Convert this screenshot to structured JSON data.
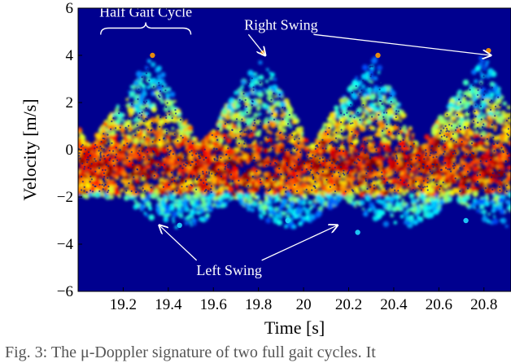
{
  "chart_data": {
    "type": "heatmap",
    "xlabel": "Time [s]",
    "ylabel": "Velocity [m/s]",
    "xlim": [
      19.0,
      20.92
    ],
    "ylim": [
      -6,
      6
    ],
    "xticks": [
      19.2,
      19.4,
      19.6,
      19.8,
      20,
      20.2,
      20.4,
      20.6,
      20.8
    ],
    "xtick_labels": [
      "19.2",
      "19.4",
      "19.6",
      "19.8",
      "20",
      "20.2",
      "20.4",
      "20.6",
      "20.8"
    ],
    "yticks": [
      -6,
      -4,
      -2,
      0,
      2,
      4,
      6
    ],
    "ytick_labels": [
      "−6",
      "−4",
      "−2",
      "0",
      "2",
      "4",
      "6"
    ],
    "colormap": "jet",
    "background_color": "#00008f",
    "swing_peaks": [
      {
        "label": "right",
        "time": 19.33,
        "velocity": 4.0
      },
      {
        "label": "right",
        "time": 19.82,
        "velocity": 4.1
      },
      {
        "label": "right",
        "time": 20.33,
        "velocity": 4.0
      },
      {
        "label": "right",
        "time": 20.82,
        "velocity": 4.2
      },
      {
        "label": "left",
        "time": 19.45,
        "velocity": -3.2
      },
      {
        "label": "left",
        "time": 19.93,
        "velocity": -3.0
      },
      {
        "label": "left",
        "time": 20.24,
        "velocity": -3.5
      },
      {
        "label": "left",
        "time": 20.72,
        "velocity": -3.0
      }
    ],
    "annotations": [
      {
        "text": "Half Gait Cycle",
        "bracket_x": [
          19.1,
          19.5
        ],
        "y": 5.5
      },
      {
        "text": "Right Swing",
        "x": 19.9,
        "y": 5.3,
        "arrows_to": [
          [
            19.83,
            4.0
          ],
          [
            20.83,
            4.0
          ]
        ]
      },
      {
        "text": "Left Swing",
        "x": 19.67,
        "y": -5.1,
        "arrows_to": [
          [
            19.36,
            -3.2
          ],
          [
            20.15,
            -3.2
          ]
        ]
      }
    ]
  },
  "caption": "Fig. 3: The μ-Doppler signature of two full gait cycles. It"
}
